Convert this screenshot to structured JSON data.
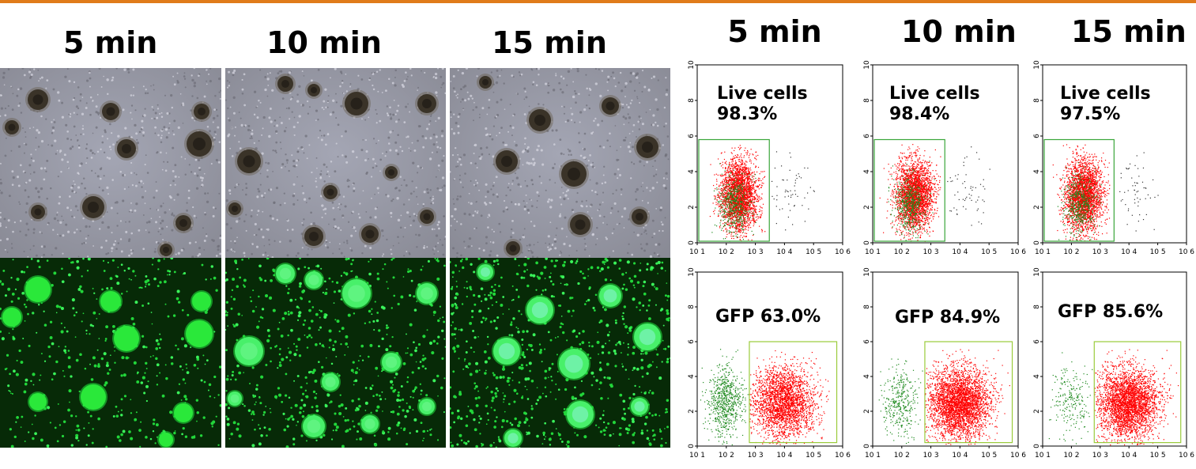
{
  "microscopy": {
    "column_titles": [
      "5 min",
      "10 min",
      "15 min"
    ],
    "brightfield_color": "#9a9aa6",
    "fluorescence_color": "#22e63a"
  },
  "flow": {
    "column_titles": [
      "5 min",
      "10 min",
      "15 min"
    ],
    "x_tick_labels": [
      "10 1",
      "10 2",
      "10 3",
      "10 4",
      "10 5",
      "10 6"
    ],
    "y_tick_labels": [
      "0",
      "2",
      "4",
      "6",
      "8",
      "10"
    ],
    "gate_color": "#3aa63a",
    "gfp_gate_color": "#9acb3a",
    "positive_color": "#ff0000",
    "negative_color": "#1f8a1f",
    "live_plots": [
      {
        "label_line1": "Live cells",
        "label_line2": "98.3%"
      },
      {
        "label_line1": "Live cells",
        "label_line2": "98.4%"
      },
      {
        "label_line1": "Live cells",
        "label_line2": "97.5%"
      }
    ],
    "gfp_plots": [
      {
        "label": "GFP 63.0%"
      },
      {
        "label": "GFP 84.9%"
      },
      {
        "label": "GFP 85.6%"
      }
    ]
  }
}
